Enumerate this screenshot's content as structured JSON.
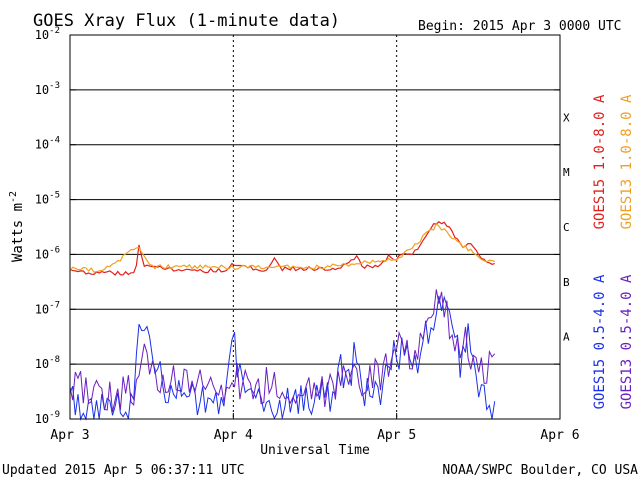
{
  "chart_data": {
    "type": "line",
    "title": "GOES Xray Flux (1-minute data)",
    "begin_label": "Begin:  2015 Apr 3 0000 UTC",
    "ylabel": "Watts m",
    "ylabel_superscript": "-2",
    "xlabel": "Universal Time",
    "y_scale": "log",
    "ylim": [
      1e-09,
      0.01
    ],
    "y_ticks": [
      {
        "base": "10",
        "exp": "-2"
      },
      {
        "base": "10",
        "exp": "-3"
      },
      {
        "base": "10",
        "exp": "-4"
      },
      {
        "base": "10",
        "exp": "-5"
      },
      {
        "base": "10",
        "exp": "-6"
      },
      {
        "base": "10",
        "exp": "-7"
      },
      {
        "base": "10",
        "exp": "-8"
      },
      {
        "base": "10",
        "exp": "-9"
      }
    ],
    "x_ticks": [
      "Apr 3",
      "Apr 4",
      "Apr 5",
      "Apr 6"
    ],
    "xlim_days": [
      0,
      3
    ],
    "flare_classes": [
      "X",
      "M",
      "C",
      "B",
      "A"
    ],
    "grid": "horizontal solid at each decade, vertical dashed at day boundaries",
    "legend_placement": "right, rotated",
    "series": [
      {
        "name": "GOES15 1.0-8.0 A",
        "color": "#e0201c",
        "points": [
          [
            0,
            5e-07
          ],
          [
            0.2,
            4.6e-07
          ],
          [
            0.4,
            4.5e-07
          ],
          [
            0.42,
            1.6e-06
          ],
          [
            0.45,
            6e-07
          ],
          [
            0.7,
            5e-07
          ],
          [
            0.95,
            5.2e-07
          ],
          [
            1.0,
            6.5e-07
          ],
          [
            1.2,
            5e-07
          ],
          [
            1.25,
            9e-07
          ],
          [
            1.3,
            5.5e-07
          ],
          [
            1.5,
            5.5e-07
          ],
          [
            1.6,
            5.5e-07
          ],
          [
            1.7,
            6.5e-07
          ],
          [
            1.75,
            9e-07
          ],
          [
            1.8,
            6e-07
          ],
          [
            1.9,
            6.5e-07
          ],
          [
            1.95,
            9e-07
          ],
          [
            2.0,
            8e-07
          ],
          [
            2.05,
            1.1e-06
          ],
          [
            2.1,
            1e-06
          ],
          [
            2.15,
            1.5e-06
          ],
          [
            2.2,
            3e-06
          ],
          [
            2.25,
            3.8e-06
          ],
          [
            2.3,
            3.5e-06
          ],
          [
            2.33,
            3e-06
          ],
          [
            2.38,
            1.7e-06
          ],
          [
            2.42,
            1.3e-06
          ],
          [
            2.45,
            1.8e-06
          ],
          [
            2.48,
            1.2e-06
          ],
          [
            2.52,
            8.5e-07
          ],
          [
            2.58,
            7.2e-07
          ],
          [
            2.6,
            7e-07
          ]
        ]
      },
      {
        "name": "GOES13 1.0-8.0 A",
        "color": "#f0a020",
        "points": [
          [
            0,
            5.5e-07
          ],
          [
            0.2,
            5e-07
          ],
          [
            0.42,
            1.4e-06
          ],
          [
            0.5,
            6e-07
          ],
          [
            1.0,
            5.8e-07
          ],
          [
            1.5,
            5.8e-07
          ],
          [
            2.0,
            8e-07
          ],
          [
            2.25,
            3.5e-06
          ],
          [
            2.4,
            1.5e-06
          ],
          [
            2.55,
            7.5e-07
          ],
          [
            2.6,
            7e-07
          ]
        ]
      },
      {
        "name": "GOES15 0.5-4.0 A",
        "color": "#1a30e8",
        "points": [
          [
            0,
            2e-09
          ],
          [
            0.2,
            1.5e-09
          ],
          [
            0.38,
            2e-09
          ],
          [
            0.42,
            7.5e-08
          ],
          [
            0.48,
            2e-08
          ],
          [
            0.6,
            3e-09
          ],
          [
            0.8,
            2e-09
          ],
          [
            0.95,
            3e-09
          ],
          [
            1.0,
            2e-08
          ],
          [
            1.1,
            3e-09
          ],
          [
            1.3,
            2e-09
          ],
          [
            1.4,
            2e-09
          ],
          [
            1.5,
            2.5e-09
          ],
          [
            1.6,
            3e-09
          ],
          [
            1.65,
            1e-08
          ],
          [
            1.72,
            5e-09
          ],
          [
            1.75,
            3e-08
          ],
          [
            1.8,
            3.5e-09
          ],
          [
            1.9,
            3e-09
          ],
          [
            2.0,
            2e-08
          ],
          [
            2.05,
            1.2e-08
          ],
          [
            2.1,
            1e-08
          ],
          [
            2.2,
            4e-08
          ],
          [
            2.25,
            1.8e-07
          ],
          [
            2.3,
            1.2e-07
          ],
          [
            2.35,
            3e-08
          ],
          [
            2.4,
            8e-09
          ],
          [
            2.43,
            5e-08
          ],
          [
            2.46,
            2e-08
          ],
          [
            2.5,
            4e-09
          ],
          [
            2.55,
            1.5e-09
          ],
          [
            2.6,
            1e-09
          ]
        ]
      },
      {
        "name": "GOES13 0.5-4.0 A",
        "color": "#6a1fc0",
        "points": [
          [
            0,
            4e-09
          ],
          [
            0.1,
            3e-09
          ],
          [
            0.2,
            2.5e-09
          ],
          [
            0.3,
            3e-09
          ],
          [
            0.4,
            4e-09
          ],
          [
            0.45,
            2e-08
          ],
          [
            0.55,
            5e-09
          ],
          [
            0.7,
            4e-09
          ],
          [
            0.9,
            4e-09
          ],
          [
            1.0,
            5e-09
          ],
          [
            1.2,
            4e-09
          ],
          [
            1.4,
            4e-09
          ],
          [
            1.5,
            3e-09
          ],
          [
            1.6,
            3e-09
          ],
          [
            1.7,
            5e-09
          ],
          [
            1.8,
            5e-09
          ],
          [
            1.9,
            6e-09
          ],
          [
            2.0,
            2e-08
          ],
          [
            2.05,
            1.8e-08
          ],
          [
            2.1,
            1.2e-08
          ],
          [
            2.15,
            2e-08
          ],
          [
            2.2,
            4e-08
          ],
          [
            2.25,
            1.3e-07
          ],
          [
            2.3,
            1e-07
          ],
          [
            2.35,
            4e-08
          ],
          [
            2.4,
            1.5e-08
          ],
          [
            2.43,
            3e-08
          ],
          [
            2.46,
            1.5e-08
          ],
          [
            2.5,
            1e-08
          ],
          [
            2.55,
            8e-09
          ],
          [
            2.6,
            1.5e-08
          ]
        ]
      }
    ]
  },
  "footer": {
    "updated": "Updated 2015 Apr  5 06:37:11 UTC",
    "source": "NOAA/SWPC Boulder, CO USA"
  }
}
